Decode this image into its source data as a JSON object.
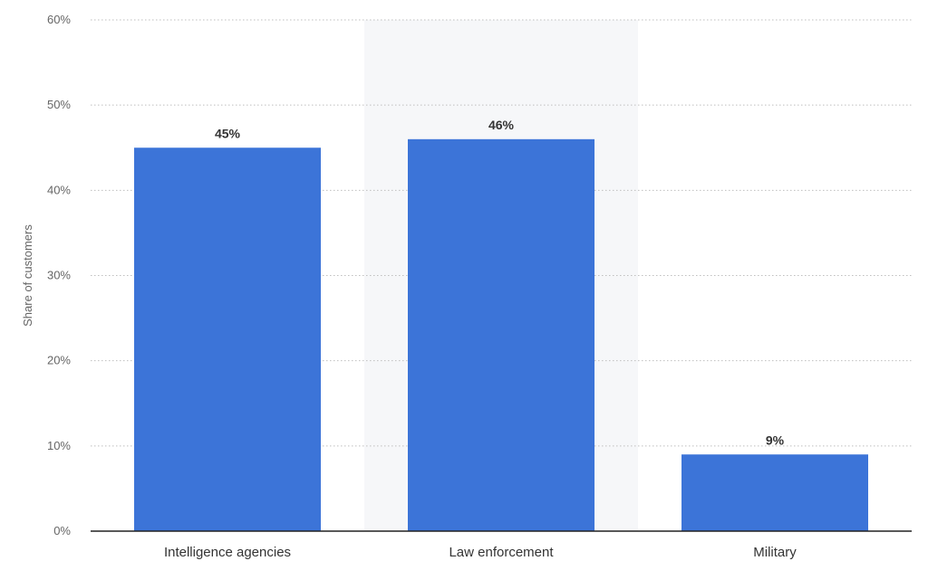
{
  "chart_data": {
    "type": "bar",
    "categories": [
      "Intelligence agencies",
      "Law enforcement",
      "Military"
    ],
    "values": [
      45,
      46,
      9
    ],
    "data_labels": [
      "45%",
      "46%",
      "9%"
    ],
    "ylabel": "Share of customers",
    "ylim": [
      0,
      60
    ],
    "yticks": [
      0,
      10,
      20,
      30,
      40,
      50,
      60
    ],
    "ytick_labels": [
      "0%",
      "10%",
      "20%",
      "30%",
      "40%",
      "50%",
      "60%"
    ],
    "grid": true,
    "highlighted_category": "Law enforcement",
    "colors": {
      "bar": "#3c74d8",
      "highlight_band": "#f6f7f9"
    }
  }
}
